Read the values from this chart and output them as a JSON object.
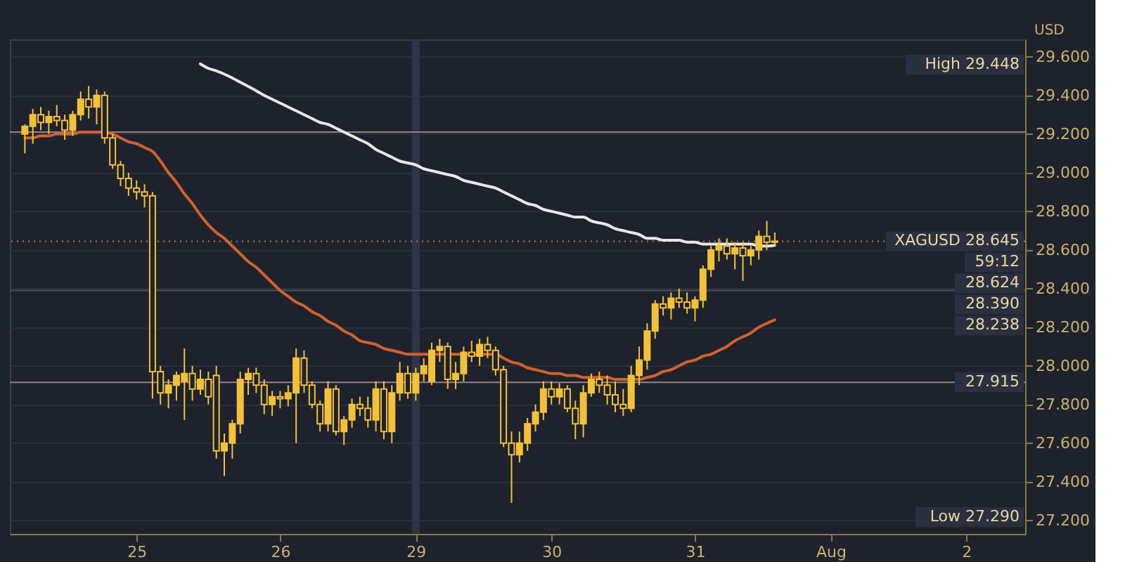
{
  "chart_data": {
    "type": "candlestick",
    "color": "#f2c03c",
    "ylabel": "USD",
    "categories": [
      null,
      null,
      null,
      null,
      null,
      null,
      null,
      null,
      null,
      null,
      null,
      null,
      null,
      null,
      "25",
      null,
      null,
      null,
      null,
      null,
      null,
      null,
      null,
      null,
      null,
      null,
      null,
      null,
      null,
      null,
      null,
      null,
      "26",
      null,
      null,
      null,
      null,
      null,
      null,
      null,
      null,
      null,
      null,
      null,
      null,
      null,
      null,
      null,
      null,
      "29",
      null,
      null,
      null,
      null,
      null,
      null,
      null,
      null,
      null,
      null,
      null,
      null,
      null,
      null,
      null,
      null,
      "30",
      null,
      null,
      null,
      null,
      null,
      null,
      null,
      null,
      null,
      null,
      null,
      null,
      null,
      null,
      null,
      null,
      null,
      "31",
      null,
      null,
      null,
      null,
      null,
      null,
      null,
      null,
      null,
      null,
      null,
      null,
      null,
      null,
      null,
      null,
      "Aug",
      null,
      null,
      null,
      null,
      null,
      null,
      null,
      null,
      null,
      null,
      null,
      null,
      null,
      null,
      null,
      null,
      "2",
      null,
      null,
      null,
      null,
      null,
      null
    ],
    "ohlc": [
      [
        29.2,
        29.25,
        29.1,
        29.24
      ],
      [
        29.24,
        29.33,
        29.15,
        29.3
      ],
      [
        29.3,
        29.34,
        29.22,
        29.26
      ],
      [
        29.26,
        29.32,
        29.2,
        29.29
      ],
      [
        29.29,
        29.35,
        29.24,
        29.27
      ],
      [
        29.27,
        29.3,
        29.17,
        29.22
      ],
      [
        29.22,
        29.32,
        29.19,
        29.3
      ],
      [
        29.3,
        29.42,
        29.27,
        29.38
      ],
      [
        29.38,
        29.448,
        29.28,
        29.34
      ],
      [
        29.34,
        29.43,
        29.25,
        29.4
      ],
      [
        29.4,
        29.42,
        29.15,
        29.18
      ],
      [
        29.18,
        29.2,
        29.02,
        29.04
      ],
      [
        29.04,
        29.06,
        28.93,
        28.97
      ],
      [
        28.97,
        29.0,
        28.88,
        28.92
      ],
      [
        28.92,
        28.96,
        28.86,
        28.9
      ],
      [
        28.9,
        28.94,
        28.82,
        28.88
      ],
      [
        28.88,
        28.9,
        27.83,
        27.97
      ],
      [
        27.97,
        28.0,
        27.8,
        27.86
      ],
      [
        27.86,
        27.93,
        27.78,
        27.9
      ],
      [
        27.9,
        27.97,
        27.82,
        27.95
      ],
      [
        27.92,
        28.09,
        27.72,
        27.96
      ],
      [
        27.96,
        28.0,
        27.82,
        27.88
      ],
      [
        27.88,
        27.98,
        27.85,
        27.93
      ],
      [
        27.93,
        27.97,
        27.8,
        27.84
      ],
      [
        27.95,
        28.0,
        27.52,
        27.56
      ],
      [
        27.56,
        27.65,
        27.43,
        27.6
      ],
      [
        27.6,
        27.72,
        27.52,
        27.7
      ],
      [
        27.7,
        27.97,
        27.65,
        27.93
      ],
      [
        27.93,
        27.99,
        27.85,
        27.96
      ],
      [
        27.96,
        27.99,
        27.86,
        27.9
      ],
      [
        27.9,
        27.93,
        27.75,
        27.8
      ],
      [
        27.8,
        27.87,
        27.74,
        27.84
      ],
      [
        27.84,
        27.87,
        27.78,
        27.83
      ],
      [
        27.83,
        27.9,
        27.79,
        27.86
      ],
      [
        27.86,
        28.09,
        27.6,
        28.04
      ],
      [
        28.04,
        28.08,
        27.86,
        27.9
      ],
      [
        27.9,
        27.92,
        27.78,
        27.8
      ],
      [
        27.8,
        27.82,
        27.66,
        27.7
      ],
      [
        27.7,
        27.92,
        27.66,
        27.88
      ],
      [
        27.88,
        27.9,
        27.64,
        27.66
      ],
      [
        27.66,
        27.74,
        27.59,
        27.72
      ],
      [
        27.72,
        27.83,
        27.68,
        27.8
      ],
      [
        27.8,
        27.84,
        27.74,
        27.78
      ],
      [
        27.78,
        27.84,
        27.68,
        27.72
      ],
      [
        27.72,
        27.92,
        27.66,
        27.88
      ],
      [
        27.88,
        27.92,
        27.62,
        27.66
      ],
      [
        27.66,
        27.9,
        27.6,
        27.86
      ],
      [
        27.86,
        28.02,
        27.82,
        27.96
      ],
      [
        27.96,
        28.0,
        27.83,
        27.86
      ],
      [
        27.86,
        27.99,
        27.82,
        27.96
      ],
      [
        27.96,
        28.04,
        27.92,
        28.0
      ],
      [
        27.92,
        28.12,
        27.9,
        28.08
      ],
      [
        28.08,
        28.14,
        28.02,
        28.1
      ],
      [
        28.1,
        28.12,
        27.88,
        27.93
      ],
      [
        27.93,
        28.02,
        27.88,
        27.96
      ],
      [
        27.96,
        28.1,
        27.92,
        28.07
      ],
      [
        28.07,
        28.13,
        28.02,
        28.05
      ],
      [
        28.05,
        28.14,
        28.0,
        28.11
      ],
      [
        28.11,
        28.15,
        28.04,
        28.08
      ],
      [
        28.08,
        28.1,
        27.95,
        27.98
      ],
      [
        27.98,
        28.0,
        27.58,
        27.6
      ],
      [
        27.6,
        27.66,
        27.29,
        27.54
      ],
      [
        27.54,
        27.66,
        27.5,
        27.6
      ],
      [
        27.6,
        27.73,
        27.56,
        27.7
      ],
      [
        27.7,
        27.8,
        27.66,
        27.76
      ],
      [
        27.76,
        27.92,
        27.72,
        27.88
      ],
      [
        27.88,
        27.92,
        27.8,
        27.84
      ],
      [
        27.84,
        27.91,
        27.8,
        27.88
      ],
      [
        27.88,
        27.9,
        27.76,
        27.78
      ],
      [
        27.78,
        27.82,
        27.62,
        27.7
      ],
      [
        27.7,
        27.9,
        27.63,
        27.86
      ],
      [
        27.86,
        27.96,
        27.84,
        27.93
      ],
      [
        27.93,
        27.97,
        27.86,
        27.9
      ],
      [
        27.9,
        27.95,
        27.8,
        27.85
      ],
      [
        27.85,
        27.92,
        27.76,
        27.8
      ],
      [
        27.8,
        27.88,
        27.74,
        27.78
      ],
      [
        27.78,
        28.0,
        27.76,
        27.95
      ],
      [
        27.95,
        28.1,
        27.9,
        28.03
      ],
      [
        28.03,
        28.22,
        27.98,
        28.18
      ],
      [
        28.18,
        28.34,
        28.14,
        28.32
      ],
      [
        28.32,
        28.36,
        28.26,
        28.3
      ],
      [
        28.3,
        28.38,
        28.24,
        28.35
      ],
      [
        28.35,
        28.4,
        28.3,
        28.33
      ],
      [
        28.33,
        28.38,
        28.27,
        28.3
      ],
      [
        28.3,
        28.36,
        28.23,
        28.34
      ],
      [
        28.34,
        28.52,
        28.3,
        28.5
      ],
      [
        28.5,
        28.62,
        28.46,
        28.6
      ],
      [
        28.6,
        28.66,
        28.54,
        28.62
      ],
      [
        28.62,
        28.66,
        28.55,
        28.58
      ],
      [
        28.58,
        28.64,
        28.5,
        28.61
      ],
      [
        28.61,
        28.64,
        28.44,
        28.57
      ],
      [
        28.57,
        28.62,
        28.52,
        28.6
      ],
      [
        28.6,
        28.7,
        28.55,
        28.67
      ],
      [
        28.67,
        28.75,
        28.6,
        28.64
      ],
      [
        28.64,
        28.69,
        28.62,
        28.645
      ],
      null,
      null,
      null,
      null,
      null,
      null,
      null,
      null,
      null,
      null,
      null,
      null,
      null,
      null,
      null,
      null,
      null,
      null,
      null,
      null,
      null,
      null,
      null,
      null,
      null,
      null,
      null,
      null,
      null,
      null
    ],
    "series": [
      {
        "type": "line",
        "color": "#e8e8e8",
        "values": [
          null,
          null,
          null,
          null,
          null,
          null,
          null,
          null,
          null,
          null,
          null,
          null,
          null,
          null,
          null,
          null,
          null,
          null,
          null,
          null,
          null,
          null,
          29.563,
          29.54,
          29.527,
          29.51,
          29.49,
          29.468,
          29.446,
          29.424,
          29.4,
          29.38,
          29.36,
          29.34,
          29.32,
          29.3,
          29.28,
          29.26,
          29.25,
          29.23,
          29.21,
          29.19,
          29.17,
          29.15,
          29.12,
          29.1,
          29.08,
          29.06,
          29.05,
          29.04,
          29.02,
          29.01,
          29.0,
          28.99,
          28.98,
          28.96,
          28.95,
          28.94,
          28.93,
          28.92,
          28.9,
          28.88,
          28.86,
          28.84,
          28.83,
          28.81,
          28.8,
          28.79,
          28.78,
          28.77,
          28.77,
          28.75,
          28.74,
          28.73,
          28.71,
          28.7,
          28.69,
          28.68,
          28.66,
          28.66,
          28.65,
          28.65,
          28.65,
          28.64,
          28.64,
          28.63,
          28.63,
          28.63,
          28.63,
          28.63,
          28.63,
          28.63,
          28.62,
          28.62,
          28.624,
          null,
          null,
          null,
          null,
          null,
          null,
          null,
          null,
          null,
          null,
          null,
          null,
          null,
          null,
          null,
          null,
          null,
          null,
          null,
          null,
          null,
          null,
          null,
          null,
          null,
          null,
          null,
          null,
          null,
          null
        ]
      },
      {
        "type": "line",
        "color": "#d2612c",
        "values": [
          29.18,
          29.18,
          29.19,
          29.19,
          29.2,
          29.2,
          29.2,
          29.21,
          29.21,
          29.21,
          29.21,
          29.2,
          29.18,
          29.16,
          29.15,
          29.13,
          29.11,
          29.06,
          29.0,
          28.95,
          28.89,
          28.84,
          28.78,
          28.73,
          28.69,
          28.66,
          28.62,
          28.58,
          28.54,
          28.51,
          28.47,
          28.43,
          28.39,
          28.36,
          28.33,
          28.31,
          28.28,
          28.26,
          28.23,
          28.21,
          28.18,
          28.16,
          28.13,
          28.12,
          28.11,
          28.09,
          28.08,
          28.07,
          28.06,
          28.06,
          28.06,
          28.06,
          28.06,
          28.06,
          28.06,
          28.06,
          28.06,
          28.06,
          28.06,
          28.06,
          28.04,
          28.02,
          28.01,
          27.99,
          27.98,
          27.97,
          27.96,
          27.96,
          27.95,
          27.95,
          27.94,
          27.94,
          27.94,
          27.94,
          27.93,
          27.93,
          27.93,
          27.93,
          27.94,
          27.95,
          27.97,
          27.98,
          28.0,
          28.02,
          28.03,
          28.05,
          28.06,
          28.08,
          28.1,
          28.13,
          28.15,
          28.17,
          28.2,
          28.22,
          28.238,
          null,
          null,
          null,
          null,
          null,
          null,
          null,
          null,
          null,
          null,
          null,
          null,
          null,
          null,
          null,
          null,
          null,
          null,
          null,
          null,
          null,
          null,
          null,
          null,
          null,
          null,
          null,
          null,
          null,
          null
        ]
      }
    ],
    "ylim": [
      27.13,
      29.69
    ],
    "yticks": [
      {
        "value": 27.2,
        "label": "27.200"
      },
      {
        "value": 27.4,
        "label": "27.400"
      },
      {
        "value": 27.6,
        "label": "27.600"
      },
      {
        "value": 27.8,
        "label": "27.800"
      },
      {
        "value": 28.0,
        "label": "28.000"
      },
      {
        "value": 28.2,
        "label": "28.200"
      },
      {
        "value": 28.4,
        "label": "28.400"
      },
      {
        "value": 28.6,
        "label": "28.600"
      },
      {
        "value": 28.8,
        "label": "28.800"
      },
      {
        "value": 29.0,
        "label": "29.000"
      },
      {
        "value": 29.2,
        "label": "29.200"
      },
      {
        "value": 29.4,
        "label": "29.400"
      },
      {
        "value": 29.6,
        "label": "29.600"
      }
    ],
    "grid": "y",
    "ref_lines": [
      {
        "axis": "y",
        "value": 28.645,
        "color": "#a08a3a",
        "line_style": "dotted"
      },
      {
        "axis": "y",
        "value": 28.39,
        "color": "#4a4f5c"
      },
      {
        "axis": "y",
        "value": 27.915,
        "color": "#9a7f86"
      },
      {
        "axis": "y",
        "value": 29.21,
        "color": "#9a7f86"
      }
    ],
    "bands": [
      {
        "axis": "x",
        "from": "29",
        "to": "29",
        "color": "#2f3446"
      }
    ],
    "annotations": [
      "High 29.448",
      {
        "text": "XAGUSD 28.645",
        "y": 28.645
      },
      {
        "text": "59:12",
        "y": 28.645
      },
      {
        "text": "28.624",
        "y": 28.624
      },
      {
        "text": "28.390",
        "y": 28.39
      },
      "28.238",
      {
        "text": "27.915",
        "y": 27.915
      },
      "Low 27.290"
    ]
  }
}
